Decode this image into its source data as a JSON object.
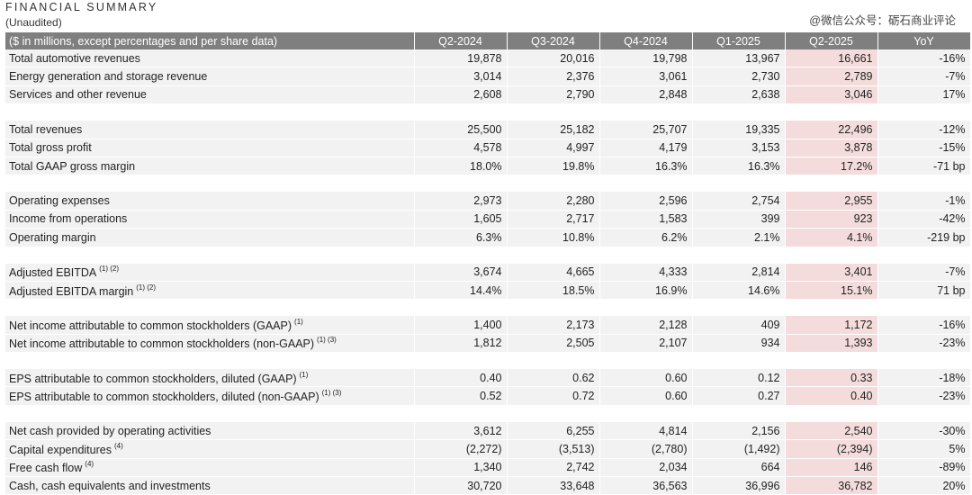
{
  "title": "FINANCIAL SUMMARY",
  "subtitle": "(Unaudited)",
  "watermark": "@微信公众号：砺石商业评论",
  "header": {
    "label": "($ in millions, except percentages and per share data)",
    "columns": [
      "Q2-2024",
      "Q3-2024",
      "Q4-2024",
      "Q1-2025",
      "Q2-2025",
      "YoY"
    ]
  },
  "groups": [
    {
      "rows": [
        {
          "label": "Total automotive revenues",
          "note": "",
          "values": [
            "19,878",
            "20,016",
            "19,798",
            "13,967",
            "16,661",
            "-16%"
          ]
        },
        {
          "label": "Energy generation and storage revenue",
          "note": "",
          "values": [
            "3,014",
            "2,376",
            "3,061",
            "2,730",
            "2,789",
            "-7%"
          ]
        },
        {
          "label": "Services and other revenue",
          "note": "",
          "values": [
            "2,608",
            "2,790",
            "2,848",
            "2,638",
            "3,046",
            "17%"
          ]
        }
      ]
    },
    {
      "rows": [
        {
          "label": "Total revenues",
          "note": "",
          "values": [
            "25,500",
            "25,182",
            "25,707",
            "19,335",
            "22,496",
            "-12%"
          ]
        },
        {
          "label": "Total gross profit",
          "note": "",
          "values": [
            "4,578",
            "4,997",
            "4,179",
            "3,153",
            "3,878",
            "-15%"
          ]
        },
        {
          "label": "Total GAAP gross margin",
          "note": "",
          "values": [
            "18.0%",
            "19.8%",
            "16.3%",
            "16.3%",
            "17.2%",
            "-71 bp"
          ]
        }
      ]
    },
    {
      "rows": [
        {
          "label": "Operating expenses",
          "note": "",
          "values": [
            "2,973",
            "2,280",
            "2,596",
            "2,754",
            "2,955",
            "-1%"
          ]
        },
        {
          "label": "Income from operations",
          "note": "",
          "values": [
            "1,605",
            "2,717",
            "1,583",
            "399",
            "923",
            "-42%"
          ]
        },
        {
          "label": "Operating margin",
          "note": "",
          "values": [
            "6.3%",
            "10.8%",
            "6.2%",
            "2.1%",
            "4.1%",
            "-219 bp"
          ]
        }
      ]
    },
    {
      "rows": [
        {
          "label": "Adjusted EBITDA",
          "note": "(1) (2)",
          "values": [
            "3,674",
            "4,665",
            "4,333",
            "2,814",
            "3,401",
            "-7%"
          ]
        },
        {
          "label": "Adjusted EBITDA margin",
          "note": "(1) (2)",
          "values": [
            "14.4%",
            "18.5%",
            "16.9%",
            "14.6%",
            "15.1%",
            "71 bp"
          ]
        }
      ]
    },
    {
      "rows": [
        {
          "label": "Net income attributable to common stockholders (GAAP)",
          "note": "(1)",
          "values": [
            "1,400",
            "2,173",
            "2,128",
            "409",
            "1,172",
            "-16%"
          ]
        },
        {
          "label": "Net income attributable to common stockholders (non-GAAP)",
          "note": "(1) (3)",
          "values": [
            "1,812",
            "2,505",
            "2,107",
            "934",
            "1,393",
            "-23%"
          ]
        }
      ]
    },
    {
      "rows": [
        {
          "label": "EPS attributable to common stockholders, diluted (GAAP)",
          "note": "(1)",
          "values": [
            "0.40",
            "0.62",
            "0.60",
            "0.12",
            "0.33",
            "-18%"
          ]
        },
        {
          "label": "EPS attributable to common stockholders, diluted (non-GAAP)",
          "note": "(1) (3)",
          "values": [
            "0.52",
            "0.72",
            "0.60",
            "0.27",
            "0.40",
            "-23%"
          ]
        }
      ]
    },
    {
      "rows": [
        {
          "label": "Net cash provided by operating activities",
          "note": "",
          "values": [
            "3,612",
            "6,255",
            "4,814",
            "2,156",
            "2,540",
            "-30%"
          ]
        },
        {
          "label": "Capital expenditures",
          "note": "(4)",
          "values": [
            "(2,272)",
            "(3,513)",
            "(2,780)",
            "(1,492)",
            "(2,394)",
            "5%"
          ]
        },
        {
          "label": "Free cash flow",
          "note": "(4)",
          "values": [
            "1,340",
            "2,742",
            "2,034",
            "664",
            "146",
            "-89%"
          ]
        },
        {
          "label": "Cash, cash equivalents and investments",
          "note": "",
          "values": [
            "30,720",
            "33,648",
            "36,563",
            "36,996",
            "36,782",
            "20%"
          ]
        }
      ]
    }
  ],
  "highlight_column_index": 4,
  "colors": {
    "header_bg": "#7f7f7f",
    "row_bg": "#f2f2f2",
    "highlight_bg": "#f4dcdc"
  }
}
